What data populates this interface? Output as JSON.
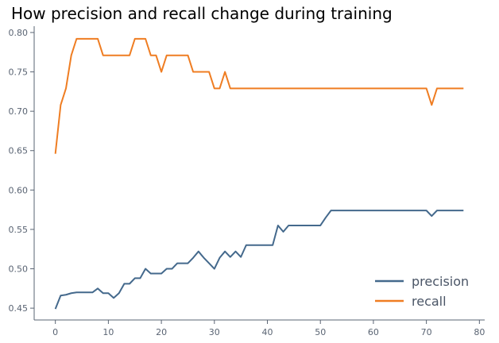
{
  "chart_data": {
    "type": "line",
    "title": "How precision and recall change during training",
    "xlabel": "",
    "ylabel": "",
    "xlim": [
      -4,
      81
    ],
    "ylim": [
      0.435,
      0.808
    ],
    "xticks": [
      0,
      10,
      20,
      30,
      40,
      50,
      60,
      70,
      80
    ],
    "yticks": [
      0.45,
      0.5,
      0.55,
      0.6,
      0.65,
      0.7,
      0.75,
      0.8
    ],
    "grid": false,
    "legend_position": "lower-right",
    "x": [
      0,
      1,
      2,
      3,
      4,
      5,
      6,
      7,
      8,
      9,
      10,
      11,
      12,
      13,
      14,
      15,
      16,
      17,
      18,
      19,
      20,
      21,
      22,
      23,
      24,
      25,
      26,
      27,
      28,
      29,
      30,
      31,
      32,
      33,
      34,
      35,
      36,
      37,
      38,
      39,
      40,
      41,
      42,
      43,
      44,
      45,
      46,
      47,
      48,
      49,
      50,
      51,
      52,
      53,
      54,
      55,
      56,
      57,
      58,
      59,
      60,
      61,
      62,
      63,
      64,
      65,
      66,
      67,
      68,
      69,
      70,
      71,
      72,
      73,
      74,
      75,
      76,
      77
    ],
    "series": [
      {
        "name": "precision",
        "color": "#44698c",
        "values": [
          0.449,
          0.466,
          0.467,
          0.469,
          0.47,
          0.47,
          0.47,
          0.47,
          0.475,
          0.469,
          0.469,
          0.463,
          0.469,
          0.481,
          0.481,
          0.488,
          0.488,
          0.5,
          0.494,
          0.494,
          0.494,
          0.5,
          0.5,
          0.507,
          0.507,
          0.507,
          0.514,
          0.522,
          0.514,
          0.507,
          0.5,
          0.514,
          0.522,
          0.515,
          0.522,
          0.515,
          0.53,
          0.53,
          0.53,
          0.53,
          0.53,
          0.53,
          0.555,
          0.547,
          0.555,
          0.555,
          0.555,
          0.555,
          0.555,
          0.555,
          0.555,
          0.565,
          0.574,
          0.574,
          0.574,
          0.574,
          0.574,
          0.574,
          0.574,
          0.574,
          0.574,
          0.574,
          0.574,
          0.574,
          0.574,
          0.574,
          0.574,
          0.574,
          0.574,
          0.574,
          0.574,
          0.567,
          0.574,
          0.574,
          0.574,
          0.574,
          0.574,
          0.574
        ]
      },
      {
        "name": "recall",
        "color": "#ef7d22",
        "values": [
          0.646,
          0.708,
          0.729,
          0.771,
          0.792,
          0.792,
          0.792,
          0.792,
          0.792,
          0.771,
          0.771,
          0.771,
          0.771,
          0.771,
          0.771,
          0.792,
          0.792,
          0.792,
          0.771,
          0.771,
          0.75,
          0.771,
          0.771,
          0.771,
          0.771,
          0.771,
          0.75,
          0.75,
          0.75,
          0.75,
          0.729,
          0.729,
          0.75,
          0.729,
          0.729,
          0.729,
          0.729,
          0.729,
          0.729,
          0.729,
          0.729,
          0.729,
          0.729,
          0.729,
          0.729,
          0.729,
          0.729,
          0.729,
          0.729,
          0.729,
          0.729,
          0.729,
          0.729,
          0.729,
          0.729,
          0.729,
          0.729,
          0.729,
          0.729,
          0.729,
          0.729,
          0.729,
          0.729,
          0.729,
          0.729,
          0.729,
          0.729,
          0.729,
          0.729,
          0.729,
          0.729,
          0.708,
          0.729,
          0.729,
          0.729,
          0.729,
          0.729,
          0.729
        ]
      }
    ]
  }
}
